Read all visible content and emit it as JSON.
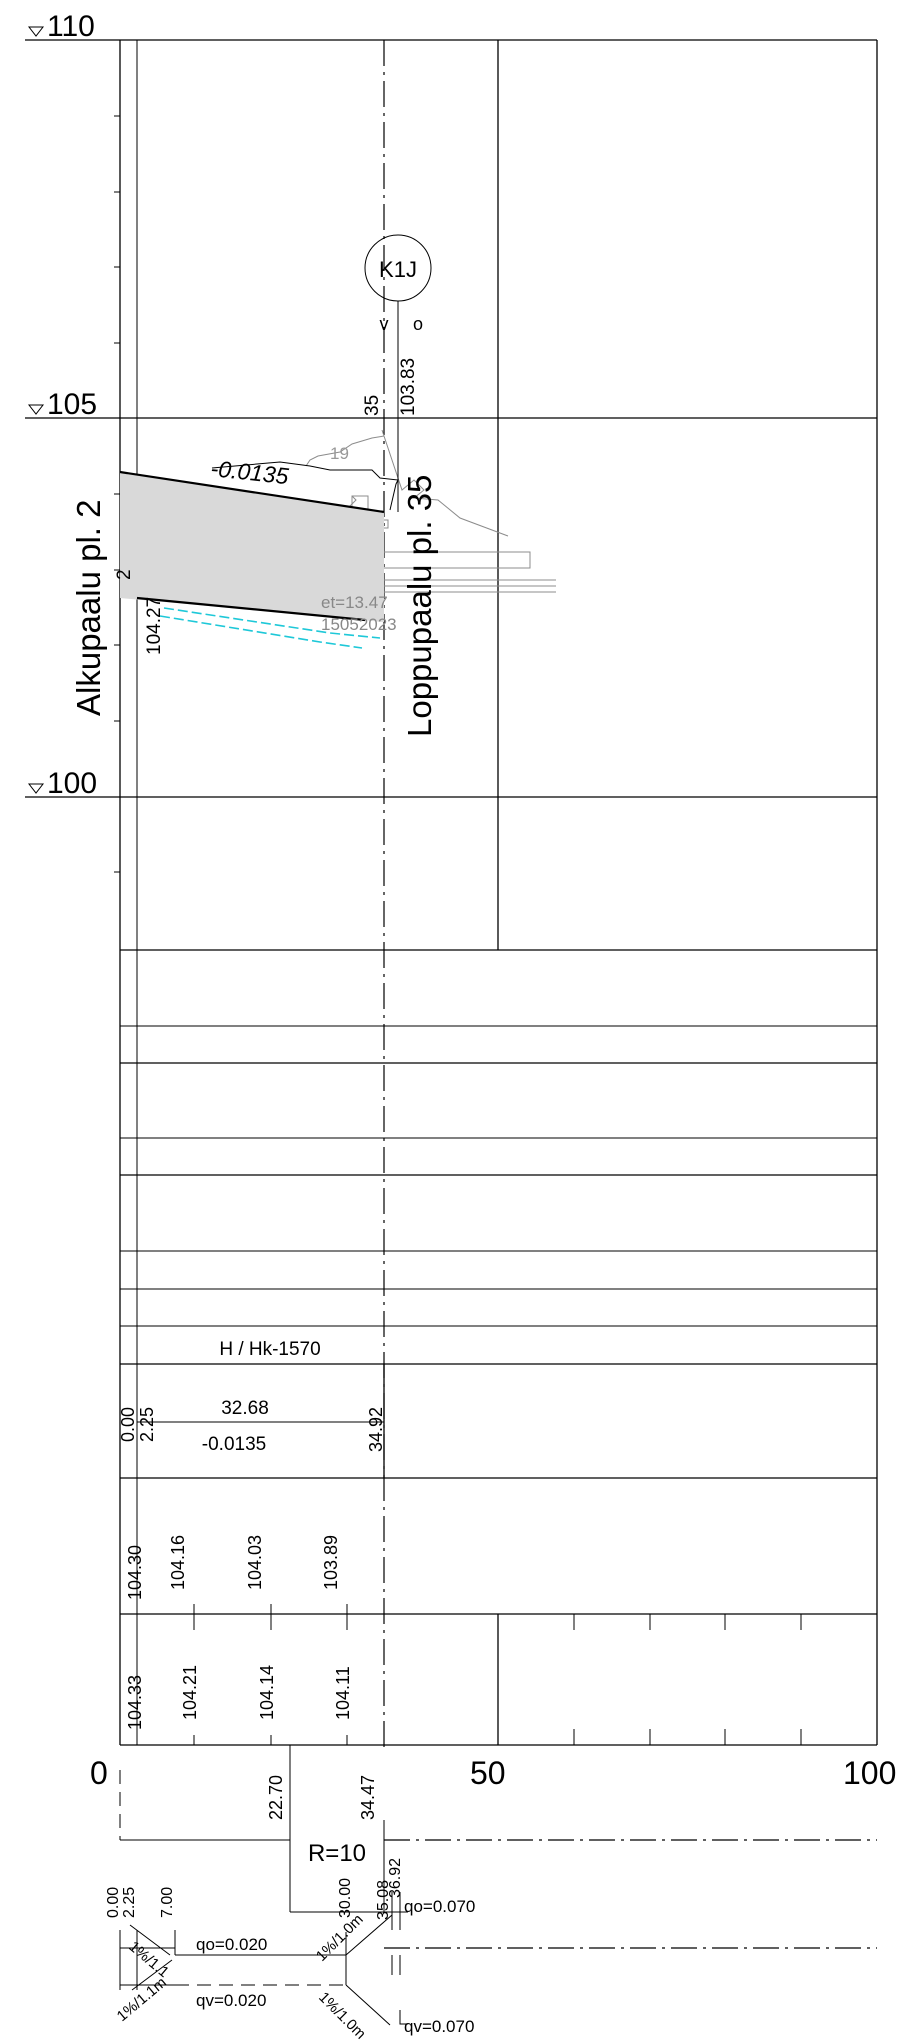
{
  "elevation_levels": {
    "top": "110",
    "mid": "105",
    "low": "100"
  },
  "station_axis": {
    "start": "0",
    "mid": "50",
    "end": "100"
  },
  "pile_labels": {
    "start": "Alkupaalu pl. 2",
    "end": "Loppupaalu pl. 35"
  },
  "well": {
    "id": "K1J",
    "v": "v",
    "o": "o",
    "elevation": "103.83",
    "station": "35"
  },
  "profile": {
    "slope": "-0.0135",
    "grey_number": "19",
    "start_elevation": "104.27",
    "start_station": "2",
    "ground_label_1": "et=13.47",
    "ground_label_2": "15052023"
  },
  "band_pipe": {
    "title": "H / Hk-1570",
    "stations": [
      "0.00",
      "2.25",
      "34.92"
    ],
    "length": "32.68",
    "slope": "-0.0135"
  },
  "band_elev1": {
    "values": [
      "104.30",
      "104.16",
      "104.03",
      "103.89"
    ]
  },
  "band_elev2": {
    "values": [
      "104.33",
      "104.21",
      "104.14",
      "104.11"
    ]
  },
  "curve": {
    "stations": [
      "22.70",
      "34.47"
    ],
    "radius": "R=10"
  },
  "cross_section": {
    "stations": [
      "0.00",
      "2.25",
      "7.00",
      "30.00",
      "35.08",
      "36.92"
    ],
    "slopes": [
      "1%/1.1",
      "1%/1.1m",
      "1%/1.0m",
      "1%/1.0m"
    ],
    "qo_left": "qo=0.020",
    "qv_left": "qv=0.020",
    "qo_right": "qo=0.070",
    "qv_right": "qv=0.070"
  }
}
